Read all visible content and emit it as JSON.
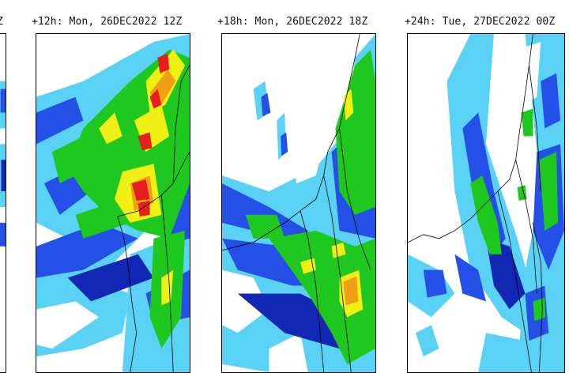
{
  "panels": [
    {
      "label": "Z",
      "truncated": true
    },
    {
      "label": "+12h: Mon, 26DEC2022 12Z"
    },
    {
      "label": "+18h: Mon, 26DEC2022 18Z"
    },
    {
      "label": "+24h: Tue, 27DEC2022 00Z"
    }
  ],
  "colors": {
    "light_blue": "#5ad2f5",
    "blue": "#2450e8",
    "dark_blue": "#1228b4",
    "green": "#1ec81e",
    "yellow": "#f0f014",
    "orange": "#f0a014",
    "red": "#e61e1e",
    "border_line": "#000000"
  }
}
